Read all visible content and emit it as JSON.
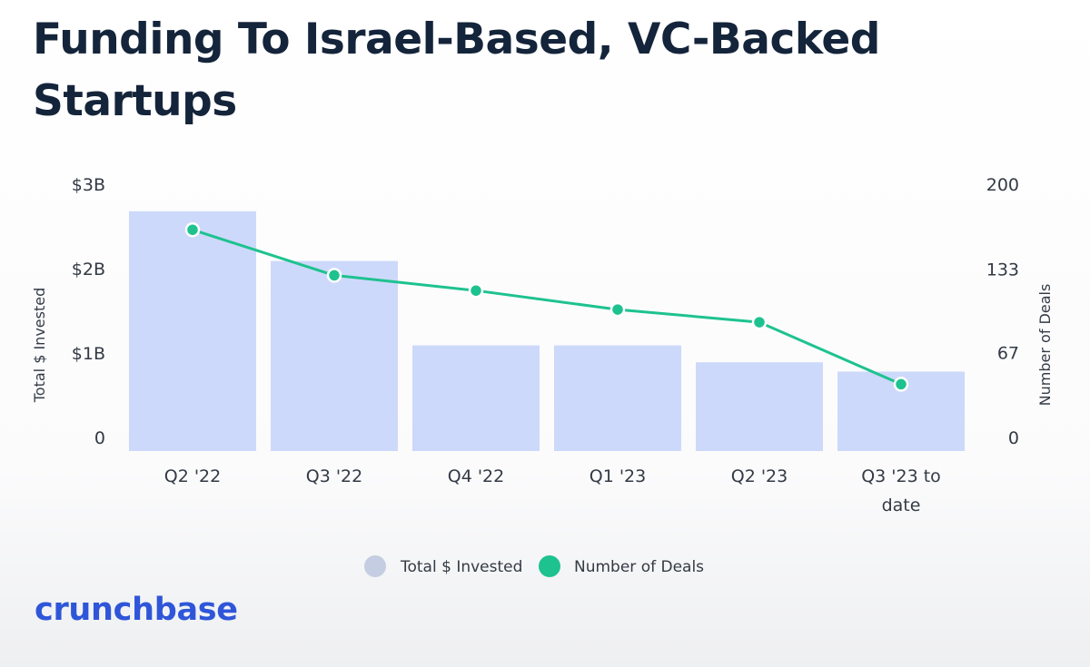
{
  "page": {
    "title": "Funding To Israel-Based, VC-Backed Startups",
    "brand": "crunchbase"
  },
  "colors": {
    "bar": "#cdd9fa",
    "line": "#1ec28f",
    "title": "#14243a",
    "axis_text": "#333a45",
    "brand": "#2f56d9",
    "legend_bar_swatch": "#c5cde2"
  },
  "chart_data": {
    "type": "bar+line",
    "title": "Funding To Israel-Based, VC-Backed Startups",
    "categories": [
      "Q2 '22",
      "Q3 '22",
      "Q4 '22",
      "Q1 '23",
      "Q2 '23",
      "Q3 '23 to date"
    ],
    "category_lines": [
      [
        "Q2 '22"
      ],
      [
        "Q3 '22"
      ],
      [
        "Q4 '22"
      ],
      [
        "Q1 '23"
      ],
      [
        "Q2 '23"
      ],
      [
        "Q3 '23 to",
        "date"
      ]
    ],
    "series": [
      {
        "name": "Total $ Invested",
        "type": "bar",
        "axis": "left",
        "unit": "USD billions",
        "values": [
          2.68,
          2.09,
          1.09,
          1.09,
          0.89,
          0.78
        ]
      },
      {
        "name": "Number of Deals",
        "type": "line",
        "axis": "right",
        "values": [
          164,
          128,
          116,
          101,
          91,
          42
        ]
      }
    ],
    "y_left": {
      "label": "Total $ Invested",
      "range": [
        0,
        3
      ],
      "ticks": [
        0,
        1,
        2,
        3
      ],
      "tick_labels": [
        "0",
        "$1B",
        "$2B",
        "$3B"
      ]
    },
    "y_right": {
      "label": "Number of Deals",
      "range": [
        0,
        200
      ],
      "ticks": [
        0,
        67,
        133,
        200
      ],
      "tick_labels": [
        "0",
        "67",
        "133",
        "200"
      ]
    },
    "grid": false,
    "legend": {
      "position": "bottom-center",
      "entries": [
        "Total $ Invested",
        "Number of Deals"
      ]
    }
  }
}
